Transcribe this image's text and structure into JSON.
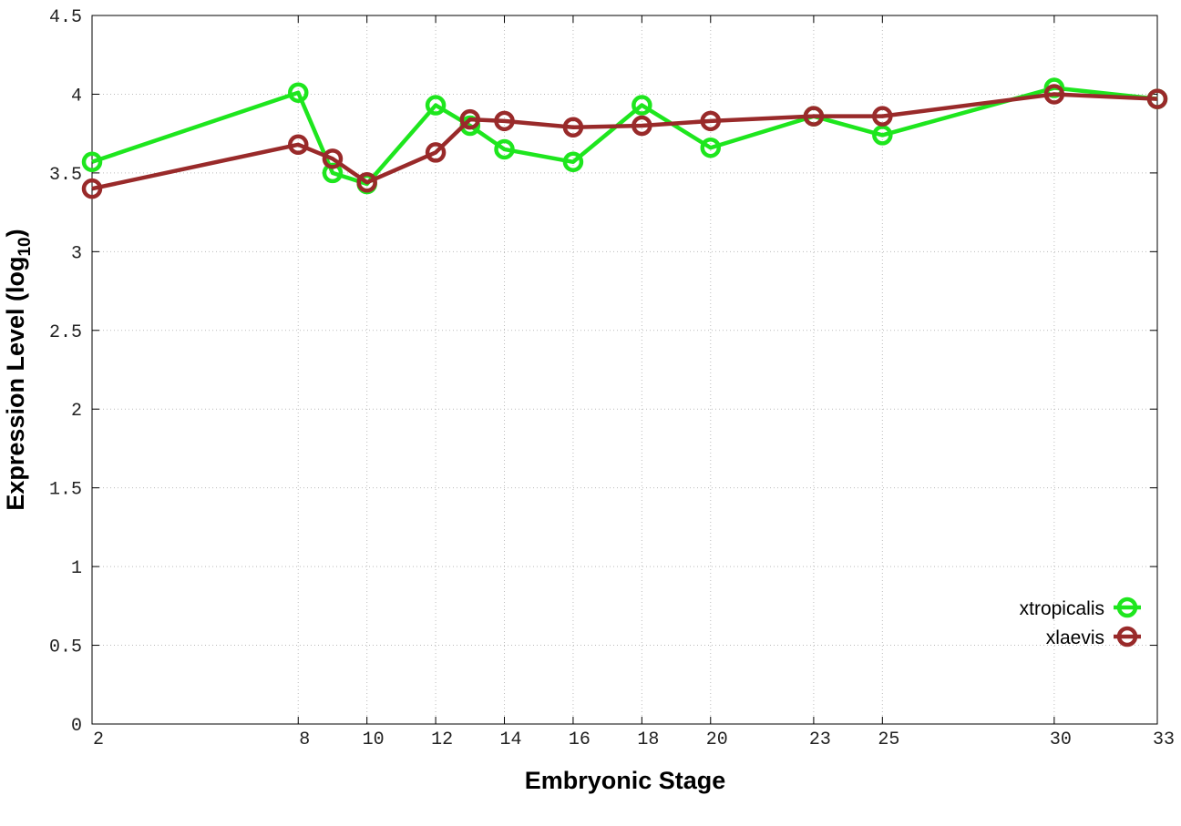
{
  "chart_data": {
    "type": "line",
    "x_label": "Embryonic Stage",
    "y_label": [
      "Expression Level (log",
      "10",
      ")"
    ],
    "x": [
      2,
      8,
      9,
      10,
      12,
      13,
      14,
      16,
      18,
      20,
      23,
      25,
      30,
      33
    ],
    "series": [
      {
        "name": "xtropicalis",
        "color": "#1ee61e",
        "values": [
          3.57,
          4.01,
          3.5,
          3.43,
          3.93,
          3.8,
          3.65,
          3.57,
          3.93,
          3.66,
          3.86,
          3.74,
          4.04,
          3.97
        ]
      },
      {
        "name": "xlaevis",
        "color": "#992a2a",
        "values": [
          3.4,
          3.68,
          3.59,
          3.44,
          3.63,
          3.84,
          3.83,
          3.79,
          3.8,
          3.83,
          3.86,
          3.86,
          4.0,
          3.97
        ]
      }
    ],
    "xlim": [
      2,
      33
    ],
    "xticks": [
      2,
      8,
      10,
      12,
      14,
      16,
      18,
      20,
      23,
      25,
      30,
      33
    ],
    "ylim": [
      0,
      4.5
    ],
    "yticks": [
      0,
      0.5,
      1,
      1.5,
      2,
      2.5,
      3,
      3.5,
      4,
      4.5
    ],
    "grid": true,
    "legend": "bottom-right"
  }
}
